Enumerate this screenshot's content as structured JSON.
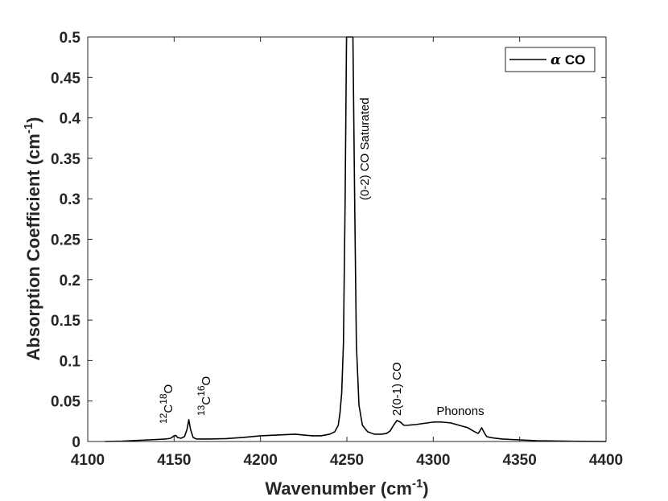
{
  "chart_data": {
    "type": "line",
    "xlabel_main": "Wavenumber (cm",
    "xlabel_sup": "-1",
    "xlabel_end": ")",
    "ylabel_main": "Absorption Coefficient (cm",
    "ylabel_sup": "-1",
    "ylabel_end": ")",
    "xlim": [
      4100,
      4400
    ],
    "ylim": [
      0,
      0.5
    ],
    "xticks": [
      4100,
      4150,
      4200,
      4250,
      4300,
      4350,
      4400
    ],
    "yticks": [
      0,
      0.05,
      0.1,
      0.15,
      0.2,
      0.25,
      0.3,
      0.35,
      0.4,
      0.45,
      0.5
    ],
    "ytick_labels": [
      "0",
      "0.05",
      "0.1",
      "0.15",
      "0.2",
      "0.25",
      "0.3",
      "0.35",
      "0.4",
      "0.45",
      "0.5"
    ],
    "grid": false,
    "legend": {
      "position": "top-right",
      "greek": "α",
      "label": " CO"
    },
    "series": [
      {
        "name": "α CO",
        "color": "#000000",
        "x": [
          4110,
          4120,
          4130,
          4140,
          4145,
          4148,
          4150,
          4151,
          4152,
          4154,
          4156,
          4157.5,
          4158.5,
          4159.5,
          4161,
          4163,
          4170,
          4180,
          4190,
          4200,
          4205,
          4210,
          4220,
          4230,
          4235,
          4240,
          4243,
          4245,
          4246,
          4247,
          4248,
          4249,
          4249.8,
          4250.5,
          4252,
          4253.5,
          4254.5,
          4255.5,
          4257,
          4259,
          4262,
          4266,
          4270,
          4273,
          4275,
          4277,
          4279,
          4281,
          4283,
          4285,
          4290,
          4300,
          4305,
          4310,
          4315,
          4320,
          4324,
          4326,
          4327,
          4328,
          4329,
          4330,
          4331,
          4333,
          4336,
          4340,
          4345,
          4350,
          4360,
          4380,
          4400
        ],
        "y": [
          0.0,
          0.0005,
          0.0015,
          0.0025,
          0.003,
          0.004,
          0.007,
          0.0075,
          0.005,
          0.004,
          0.006,
          0.015,
          0.027,
          0.015,
          0.005,
          0.003,
          0.003,
          0.0035,
          0.005,
          0.007,
          0.0075,
          0.008,
          0.009,
          0.007,
          0.007,
          0.009,
          0.012,
          0.02,
          0.035,
          0.06,
          0.12,
          0.3,
          0.5,
          0.5,
          0.5,
          0.5,
          0.3,
          0.12,
          0.045,
          0.02,
          0.012,
          0.009,
          0.009,
          0.01,
          0.013,
          0.02,
          0.026,
          0.024,
          0.02,
          0.02,
          0.021,
          0.024,
          0.024,
          0.023,
          0.02,
          0.017,
          0.012,
          0.01,
          0.013,
          0.017,
          0.013,
          0.009,
          0.006,
          0.005,
          0.004,
          0.003,
          0.0025,
          0.002,
          0.001,
          0.0003,
          0.0
        ]
      }
    ],
    "annotations": [
      {
        "id": "c12o18",
        "parts": [
          {
            "t": "12",
            "sup": true
          },
          {
            "t": "C"
          },
          {
            "t": "18",
            "sup": true
          },
          {
            "t": "O"
          }
        ]
      },
      {
        "id": "c13o16",
        "parts": [
          {
            "t": "13",
            "sup": true
          },
          {
            "t": "C"
          },
          {
            "t": "16",
            "sup": true
          },
          {
            "t": "O"
          }
        ]
      },
      {
        "id": "co-saturated",
        "text": "(0-2)  CO Saturated"
      },
      {
        "id": "co-2-0-1",
        "text": "2(0-1)  CO"
      },
      {
        "id": "phonons",
        "text": "Phonons"
      }
    ]
  }
}
